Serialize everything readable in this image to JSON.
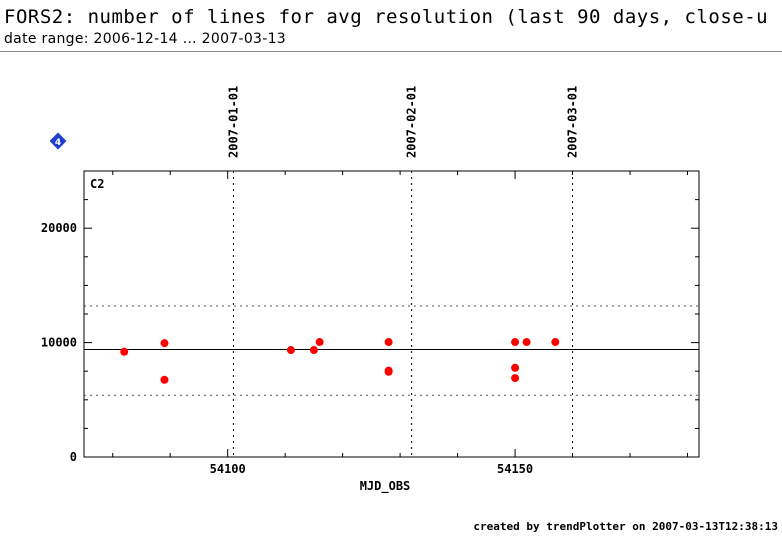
{
  "header": {
    "title": "FORS2: number of lines for avg resolution (last 90 days, close-u",
    "subtitle": "date range: 2006-12-14 … 2007-03-13"
  },
  "footer": {
    "credit": "created by trendPlotter on 2007-03-13T12:38:13"
  },
  "badge": {
    "label": "4",
    "color": "#1f3fcf"
  },
  "colors": {
    "points": "#ff0000",
    "axes": "#000000",
    "reference_lines": "#555555"
  },
  "chart_data": {
    "type": "scatter",
    "panel_label": "C2",
    "xlabel": "MJD_OBS",
    "ylabel": "",
    "xlim": [
      54075,
      54182
    ],
    "ylim": [
      0,
      25000
    ],
    "x_ticks": [
      54100,
      54150
    ],
    "y_ticks": [
      0,
      10000,
      20000
    ],
    "x_minor_step": 10,
    "y_minor_step": 2500,
    "date_markers": [
      {
        "label": "2007-01-01",
        "x": 54101
      },
      {
        "label": "2007-02-01",
        "x": 54132
      },
      {
        "label": "2007-03-01",
        "x": 54160
      }
    ],
    "reference_lines": {
      "mean": 9400,
      "upper": 13200,
      "lower": 5400
    },
    "points": [
      {
        "x": 54082,
        "y": 9200
      },
      {
        "x": 54089,
        "y": 9950
      },
      {
        "x": 54089,
        "y": 6750
      },
      {
        "x": 54111,
        "y": 9350
      },
      {
        "x": 54115,
        "y": 9350
      },
      {
        "x": 54116,
        "y": 10050
      },
      {
        "x": 54128,
        "y": 10050
      },
      {
        "x": 54128,
        "y": 7450
      },
      {
        "x": 54128,
        "y": 7550
      },
      {
        "x": 54150,
        "y": 10050
      },
      {
        "x": 54150,
        "y": 7800
      },
      {
        "x": 54150,
        "y": 6900
      },
      {
        "x": 54152,
        "y": 10050
      },
      {
        "x": 54157,
        "y": 10050
      }
    ],
    "grid": false
  }
}
